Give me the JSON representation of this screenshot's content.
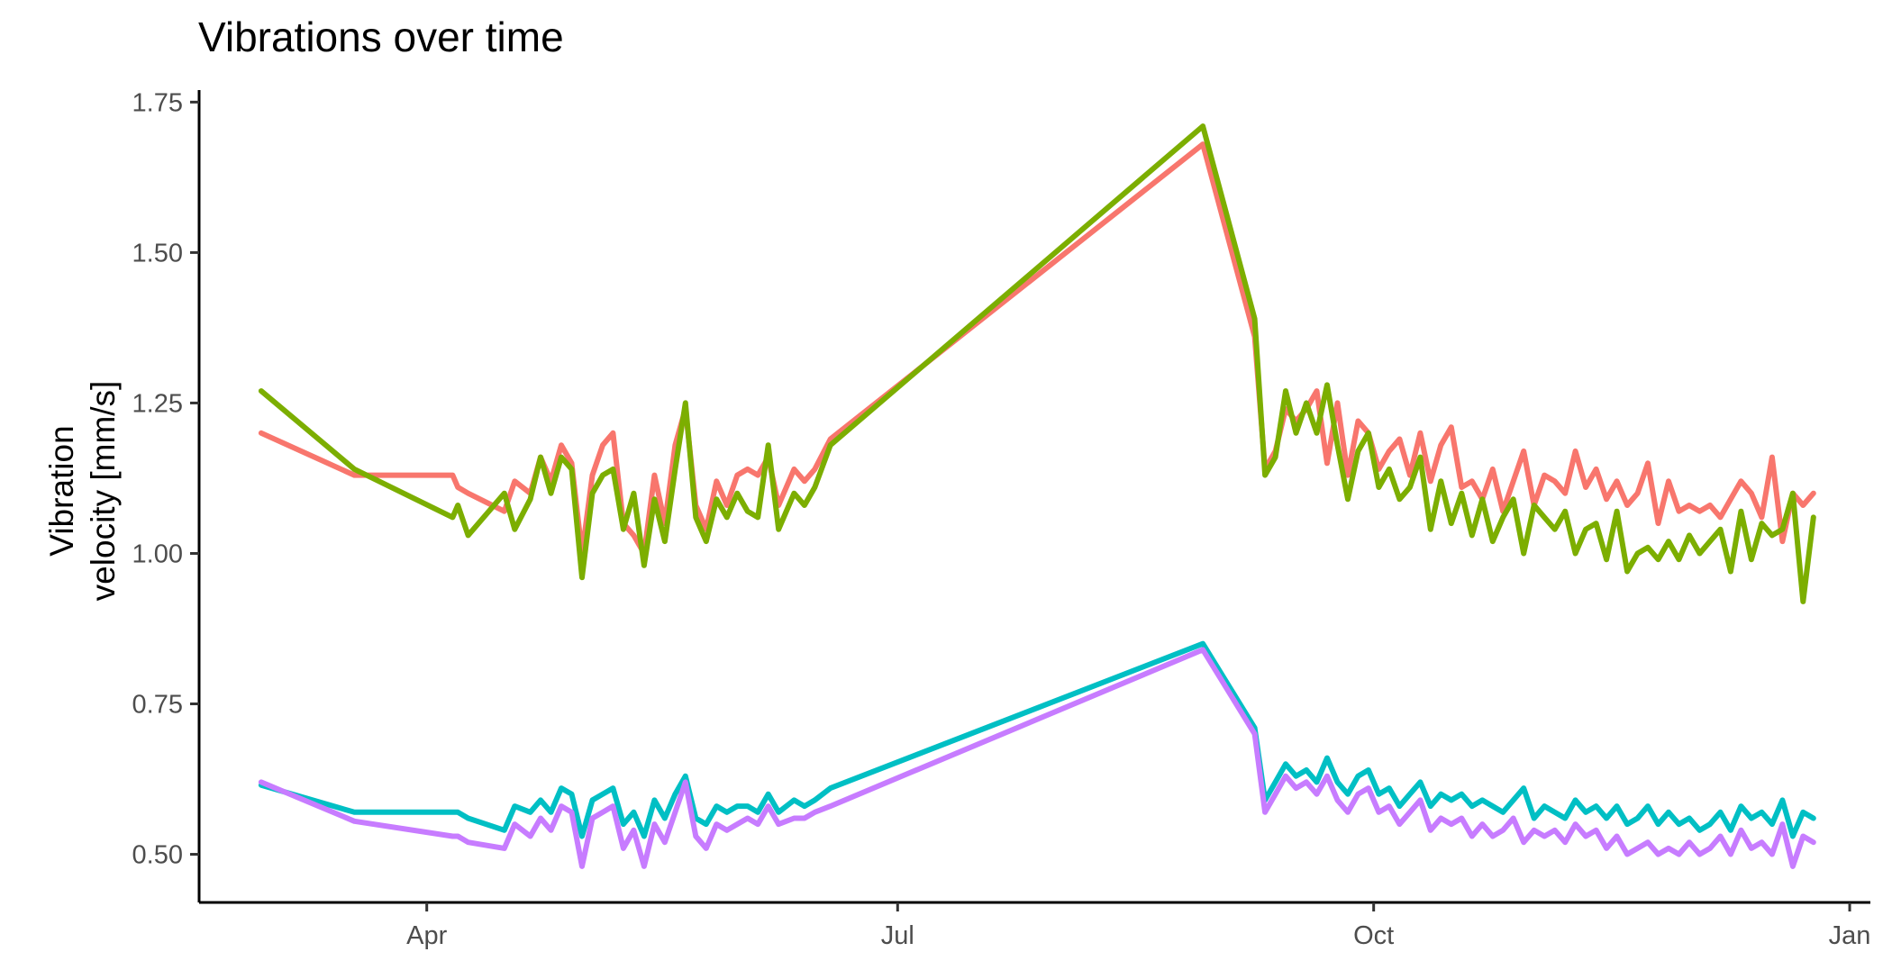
{
  "chart_data": {
    "type": "line",
    "title": "Vibrations over time",
    "xlabel": "",
    "ylabel": "Vibration\nvelocity [mm/s]",
    "xlim": [
      "2021-02-16",
      "2022-01-05"
    ],
    "ylim": [
      0.42,
      1.77
    ],
    "x_ticks": [
      {
        "date": "2021-04-01",
        "label": "Apr"
      },
      {
        "date": "2021-07-01",
        "label": "Jul"
      },
      {
        "date": "2021-10-01",
        "label": "Oct"
      },
      {
        "date": "2022-01-01",
        "label": "Jan"
      }
    ],
    "y_ticks": [
      0.5,
      0.75,
      1.0,
      1.25,
      1.5,
      1.75
    ],
    "y_tick_labels": [
      "0.50",
      "0.75",
      "1.00",
      "1.25",
      "1.50",
      "1.75"
    ],
    "grid": false,
    "legend": "none",
    "series": [
      {
        "color": "#F8766D",
        "x": [
          "2021-02-28",
          "2021-03-18",
          "2021-04-06",
          "2021-04-07",
          "2021-04-09",
          "2021-04-16",
          "2021-04-18",
          "2021-04-21",
          "2021-04-23",
          "2021-04-25",
          "2021-04-27",
          "2021-04-29",
          "2021-05-01",
          "2021-05-03",
          "2021-05-05",
          "2021-05-07",
          "2021-05-09",
          "2021-05-11",
          "2021-05-13",
          "2021-05-15",
          "2021-05-17",
          "2021-05-19",
          "2021-05-21",
          "2021-05-23",
          "2021-05-25",
          "2021-05-27",
          "2021-05-29",
          "2021-05-31",
          "2021-06-02",
          "2021-06-04",
          "2021-06-06",
          "2021-06-08",
          "2021-06-11",
          "2021-06-13",
          "2021-06-15",
          "2021-06-18",
          "2021-08-29",
          "2021-09-08",
          "2021-09-10",
          "2021-09-12",
          "2021-09-14",
          "2021-09-16",
          "2021-09-18",
          "2021-09-20",
          "2021-09-22",
          "2021-09-24",
          "2021-09-26",
          "2021-09-28",
          "2021-09-30",
          "2021-10-02",
          "2021-10-04",
          "2021-10-06",
          "2021-10-08",
          "2021-10-10",
          "2021-10-12",
          "2021-10-14",
          "2021-10-16",
          "2021-10-18",
          "2021-10-20",
          "2021-10-22",
          "2021-10-24",
          "2021-10-26",
          "2021-10-28",
          "2021-10-30",
          "2021-11-01",
          "2021-11-03",
          "2021-11-05",
          "2021-11-07",
          "2021-11-09",
          "2021-11-11",
          "2021-11-13",
          "2021-11-15",
          "2021-11-17",
          "2021-11-19",
          "2021-11-21",
          "2021-11-23",
          "2021-11-25",
          "2021-11-27",
          "2021-11-29",
          "2021-12-01",
          "2021-12-03",
          "2021-12-05",
          "2021-12-07",
          "2021-12-09",
          "2021-12-11",
          "2021-12-13",
          "2021-12-15",
          "2021-12-17",
          "2021-12-19",
          "2021-12-21",
          "2021-12-23",
          "2021-12-25"
        ],
        "y": [
          1.2,
          1.13,
          1.13,
          1.11,
          1.1,
          1.07,
          1.12,
          1.1,
          1.16,
          1.12,
          1.18,
          1.15,
          1.0,
          1.13,
          1.18,
          1.2,
          1.05,
          1.03,
          1.0,
          1.13,
          1.05,
          1.18,
          1.24,
          1.08,
          1.04,
          1.12,
          1.08,
          1.13,
          1.14,
          1.13,
          1.16,
          1.08,
          1.14,
          1.12,
          1.14,
          1.19,
          1.68,
          1.36,
          1.14,
          1.17,
          1.24,
          1.22,
          1.24,
          1.27,
          1.15,
          1.25,
          1.13,
          1.22,
          1.2,
          1.14,
          1.17,
          1.19,
          1.13,
          1.2,
          1.12,
          1.18,
          1.21,
          1.11,
          1.12,
          1.09,
          1.14,
          1.07,
          1.12,
          1.17,
          1.08,
          1.13,
          1.12,
          1.1,
          1.17,
          1.11,
          1.14,
          1.09,
          1.12,
          1.08,
          1.1,
          1.15,
          1.05,
          1.12,
          1.07,
          1.08,
          1.07,
          1.08,
          1.06,
          1.09,
          1.12,
          1.1,
          1.06,
          1.16,
          1.02,
          1.1,
          1.08,
          1.1
        ]
      },
      {
        "color": "#7CAE00",
        "x": [
          "2021-02-28",
          "2021-03-18",
          "2021-04-06",
          "2021-04-07",
          "2021-04-09",
          "2021-04-16",
          "2021-04-18",
          "2021-04-21",
          "2021-04-23",
          "2021-04-25",
          "2021-04-27",
          "2021-04-29",
          "2021-05-01",
          "2021-05-03",
          "2021-05-05",
          "2021-05-07",
          "2021-05-09",
          "2021-05-11",
          "2021-05-13",
          "2021-05-15",
          "2021-05-17",
          "2021-05-19",
          "2021-05-21",
          "2021-05-23",
          "2021-05-25",
          "2021-05-27",
          "2021-05-29",
          "2021-05-31",
          "2021-06-02",
          "2021-06-04",
          "2021-06-06",
          "2021-06-08",
          "2021-06-11",
          "2021-06-13",
          "2021-06-15",
          "2021-06-18",
          "2021-08-29",
          "2021-09-08",
          "2021-09-10",
          "2021-09-12",
          "2021-09-14",
          "2021-09-16",
          "2021-09-18",
          "2021-09-20",
          "2021-09-22",
          "2021-09-24",
          "2021-09-26",
          "2021-09-28",
          "2021-09-30",
          "2021-10-02",
          "2021-10-04",
          "2021-10-06",
          "2021-10-08",
          "2021-10-10",
          "2021-10-12",
          "2021-10-14",
          "2021-10-16",
          "2021-10-18",
          "2021-10-20",
          "2021-10-22",
          "2021-10-24",
          "2021-10-26",
          "2021-10-28",
          "2021-10-30",
          "2021-11-01",
          "2021-11-03",
          "2021-11-05",
          "2021-11-07",
          "2021-11-09",
          "2021-11-11",
          "2021-11-13",
          "2021-11-15",
          "2021-11-17",
          "2021-11-19",
          "2021-11-21",
          "2021-11-23",
          "2021-11-25",
          "2021-11-27",
          "2021-11-29",
          "2021-12-01",
          "2021-12-03",
          "2021-12-05",
          "2021-12-07",
          "2021-12-09",
          "2021-12-11",
          "2021-12-13",
          "2021-12-15",
          "2021-12-17",
          "2021-12-19",
          "2021-12-21",
          "2021-12-23",
          "2021-12-25"
        ],
        "y": [
          1.27,
          1.14,
          1.06,
          1.08,
          1.03,
          1.1,
          1.04,
          1.09,
          1.16,
          1.1,
          1.16,
          1.14,
          0.96,
          1.1,
          1.13,
          1.14,
          1.04,
          1.1,
          0.98,
          1.09,
          1.02,
          1.14,
          1.25,
          1.06,
          1.02,
          1.09,
          1.06,
          1.1,
          1.07,
          1.06,
          1.18,
          1.04,
          1.1,
          1.08,
          1.11,
          1.18,
          1.71,
          1.39,
          1.13,
          1.16,
          1.27,
          1.2,
          1.25,
          1.2,
          1.28,
          1.18,
          1.09,
          1.17,
          1.2,
          1.11,
          1.14,
          1.09,
          1.11,
          1.16,
          1.04,
          1.12,
          1.05,
          1.1,
          1.03,
          1.09,
          1.02,
          1.06,
          1.09,
          1.0,
          1.08,
          1.06,
          1.04,
          1.07,
          1.0,
          1.04,
          1.05,
          0.99,
          1.07,
          0.97,
          1.0,
          1.01,
          0.99,
          1.02,
          0.99,
          1.03,
          1.0,
          1.02,
          1.04,
          0.97,
          1.07,
          0.99,
          1.05,
          1.03,
          1.04,
          1.1,
          0.92,
          1.06
        ]
      },
      {
        "color": "#00BFC4",
        "x": [
          "2021-02-28",
          "2021-03-18",
          "2021-04-06",
          "2021-04-07",
          "2021-04-09",
          "2021-04-16",
          "2021-04-18",
          "2021-04-21",
          "2021-04-23",
          "2021-04-25",
          "2021-04-27",
          "2021-04-29",
          "2021-05-01",
          "2021-05-03",
          "2021-05-05",
          "2021-05-07",
          "2021-05-09",
          "2021-05-11",
          "2021-05-13",
          "2021-05-15",
          "2021-05-17",
          "2021-05-19",
          "2021-05-21",
          "2021-05-23",
          "2021-05-25",
          "2021-05-27",
          "2021-05-29",
          "2021-05-31",
          "2021-06-02",
          "2021-06-04",
          "2021-06-06",
          "2021-06-08",
          "2021-06-11",
          "2021-06-13",
          "2021-06-15",
          "2021-06-18",
          "2021-08-29",
          "2021-09-08",
          "2021-09-10",
          "2021-09-12",
          "2021-09-14",
          "2021-09-16",
          "2021-09-18",
          "2021-09-20",
          "2021-09-22",
          "2021-09-24",
          "2021-09-26",
          "2021-09-28",
          "2021-09-30",
          "2021-10-02",
          "2021-10-04",
          "2021-10-06",
          "2021-10-08",
          "2021-10-10",
          "2021-10-12",
          "2021-10-14",
          "2021-10-16",
          "2021-10-18",
          "2021-10-20",
          "2021-10-22",
          "2021-10-24",
          "2021-10-26",
          "2021-10-28",
          "2021-10-30",
          "2021-11-01",
          "2021-11-03",
          "2021-11-05",
          "2021-11-07",
          "2021-11-09",
          "2021-11-11",
          "2021-11-13",
          "2021-11-15",
          "2021-11-17",
          "2021-11-19",
          "2021-11-21",
          "2021-11-23",
          "2021-11-25",
          "2021-11-27",
          "2021-11-29",
          "2021-12-01",
          "2021-12-03",
          "2021-12-05",
          "2021-12-07",
          "2021-12-09",
          "2021-12-11",
          "2021-12-13",
          "2021-12-15",
          "2021-12-17",
          "2021-12-19",
          "2021-12-21",
          "2021-12-23",
          "2021-12-25"
        ],
        "y": [
          0.615,
          0.57,
          0.57,
          0.57,
          0.56,
          0.54,
          0.58,
          0.57,
          0.59,
          0.57,
          0.61,
          0.6,
          0.53,
          0.59,
          0.6,
          0.61,
          0.55,
          0.57,
          0.53,
          0.59,
          0.56,
          0.6,
          0.63,
          0.56,
          0.55,
          0.58,
          0.57,
          0.58,
          0.58,
          0.57,
          0.6,
          0.57,
          0.59,
          0.58,
          0.59,
          0.61,
          0.85,
          0.71,
          0.59,
          0.62,
          0.65,
          0.63,
          0.64,
          0.62,
          0.66,
          0.62,
          0.6,
          0.63,
          0.64,
          0.6,
          0.61,
          0.58,
          0.6,
          0.62,
          0.58,
          0.6,
          0.59,
          0.6,
          0.58,
          0.59,
          0.58,
          0.57,
          0.59,
          0.61,
          0.56,
          0.58,
          0.57,
          0.56,
          0.59,
          0.57,
          0.58,
          0.56,
          0.58,
          0.55,
          0.56,
          0.58,
          0.55,
          0.57,
          0.55,
          0.56,
          0.54,
          0.55,
          0.57,
          0.54,
          0.58,
          0.56,
          0.57,
          0.55,
          0.59,
          0.53,
          0.57,
          0.56
        ]
      },
      {
        "color": "#C77CFF",
        "x": [
          "2021-02-28",
          "2021-03-18",
          "2021-04-06",
          "2021-04-07",
          "2021-04-09",
          "2021-04-16",
          "2021-04-18",
          "2021-04-21",
          "2021-04-23",
          "2021-04-25",
          "2021-04-27",
          "2021-04-29",
          "2021-05-01",
          "2021-05-03",
          "2021-05-05",
          "2021-05-07",
          "2021-05-09",
          "2021-05-11",
          "2021-05-13",
          "2021-05-15",
          "2021-05-17",
          "2021-05-19",
          "2021-05-21",
          "2021-05-23",
          "2021-05-25",
          "2021-05-27",
          "2021-05-29",
          "2021-05-31",
          "2021-06-02",
          "2021-06-04",
          "2021-06-06",
          "2021-06-08",
          "2021-06-11",
          "2021-06-13",
          "2021-06-15",
          "2021-06-18",
          "2021-08-29",
          "2021-09-08",
          "2021-09-10",
          "2021-09-12",
          "2021-09-14",
          "2021-09-16",
          "2021-09-18",
          "2021-09-20",
          "2021-09-22",
          "2021-09-24",
          "2021-09-26",
          "2021-09-28",
          "2021-09-30",
          "2021-10-02",
          "2021-10-04",
          "2021-10-06",
          "2021-10-08",
          "2021-10-10",
          "2021-10-12",
          "2021-10-14",
          "2021-10-16",
          "2021-10-18",
          "2021-10-20",
          "2021-10-22",
          "2021-10-24",
          "2021-10-26",
          "2021-10-28",
          "2021-10-30",
          "2021-11-01",
          "2021-11-03",
          "2021-11-05",
          "2021-11-07",
          "2021-11-09",
          "2021-11-11",
          "2021-11-13",
          "2021-11-15",
          "2021-11-17",
          "2021-11-19",
          "2021-11-21",
          "2021-11-23",
          "2021-11-25",
          "2021-11-27",
          "2021-11-29",
          "2021-12-01",
          "2021-12-03",
          "2021-12-05",
          "2021-12-07",
          "2021-12-09",
          "2021-12-11",
          "2021-12-13",
          "2021-12-15",
          "2021-12-17",
          "2021-12-19",
          "2021-12-21",
          "2021-12-23",
          "2021-12-25"
        ],
        "y": [
          0.62,
          0.555,
          0.53,
          0.53,
          0.52,
          0.51,
          0.55,
          0.53,
          0.56,
          0.54,
          0.58,
          0.57,
          0.48,
          0.56,
          0.57,
          0.58,
          0.51,
          0.54,
          0.48,
          0.55,
          0.52,
          0.57,
          0.62,
          0.53,
          0.51,
          0.55,
          0.54,
          0.55,
          0.56,
          0.55,
          0.58,
          0.55,
          0.56,
          0.56,
          0.57,
          0.58,
          0.84,
          0.7,
          0.57,
          0.6,
          0.63,
          0.61,
          0.62,
          0.6,
          0.63,
          0.59,
          0.57,
          0.6,
          0.61,
          0.57,
          0.58,
          0.55,
          0.57,
          0.59,
          0.54,
          0.56,
          0.55,
          0.56,
          0.53,
          0.55,
          0.53,
          0.54,
          0.56,
          0.52,
          0.54,
          0.53,
          0.54,
          0.52,
          0.55,
          0.53,
          0.54,
          0.51,
          0.53,
          0.5,
          0.51,
          0.52,
          0.5,
          0.51,
          0.5,
          0.52,
          0.5,
          0.51,
          0.53,
          0.5,
          0.54,
          0.51,
          0.52,
          0.5,
          0.55,
          0.48,
          0.53,
          0.52
        ]
      }
    ]
  }
}
